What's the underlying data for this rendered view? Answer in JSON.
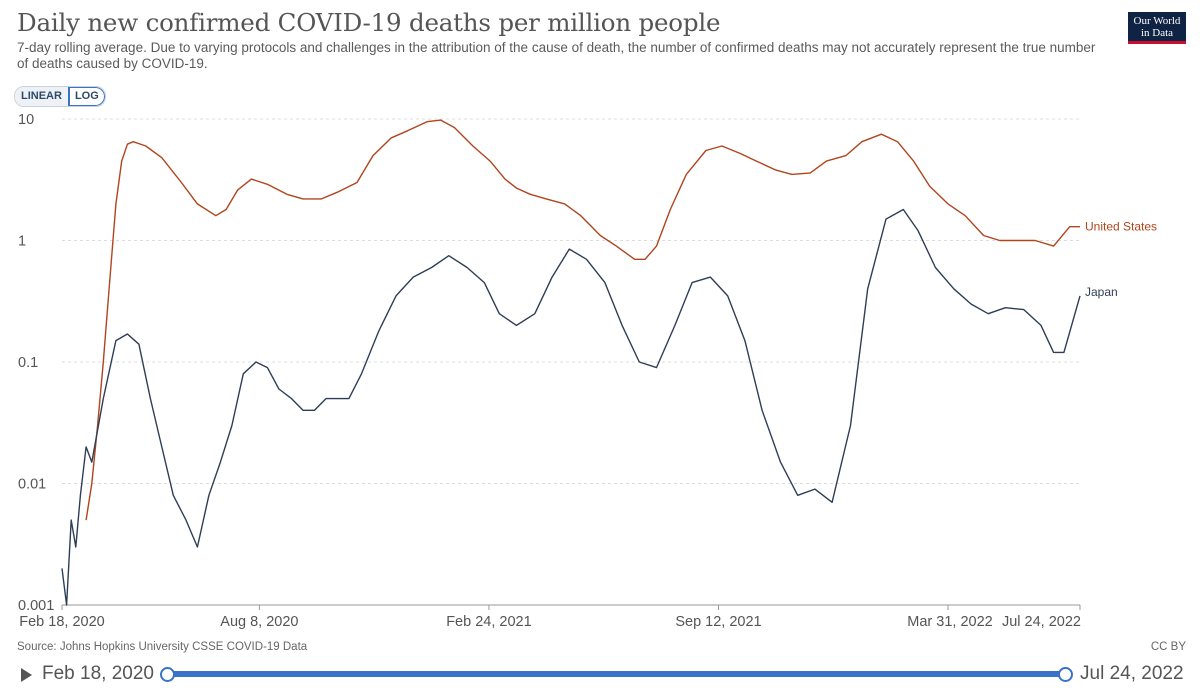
{
  "header": {
    "title": "Daily new confirmed COVID-19 deaths per million people",
    "subtitle": "7-day rolling average. Due to varying protocols and challenges in the attribution of the cause of death, the number of confirmed deaths may not accurately represent the true number of deaths caused by COVID-19.",
    "logo_line1": "Our World",
    "logo_line2": "in Data"
  },
  "controls": {
    "linear_label": "LINEAR",
    "log_label": "LOG",
    "active": "LOG"
  },
  "footer": {
    "source": "Source: Johns Hopkins University CSSE COVID-19 Data",
    "license": "CC BY"
  },
  "timeline": {
    "start": "Feb 18, 2020",
    "end": "Jul 24, 2022"
  },
  "colors": {
    "us": "#b0451e",
    "japan": "#2e3e56",
    "grid": "#dddddd",
    "accent": "#3a72c9"
  },
  "chart_data": {
    "type": "line",
    "title": "Daily new confirmed COVID-19 deaths per million people",
    "yscale": "log",
    "ylim": [
      0.001,
      10
    ],
    "yticks": [
      0.001,
      0.01,
      0.1,
      1,
      10
    ],
    "ytick_labels": [
      "0.001",
      "0.01",
      "0.1",
      "1",
      "10"
    ],
    "xlim": [
      "2020-02-18",
      "2022-07-24"
    ],
    "xticks": [
      "2020-02-18",
      "2020-08-08",
      "2021-02-24",
      "2021-09-12",
      "2022-03-31",
      "2022-07-24"
    ],
    "xtick_labels": [
      "Feb 18, 2020",
      "Aug 8, 2020",
      "Feb 24, 2021",
      "Sep 12, 2021",
      "Mar 31, 2022",
      "Jul 24, 2022"
    ],
    "grid": true,
    "legend": "inline-right",
    "series": [
      {
        "name": "United States",
        "color": "#b0451e",
        "x": [
          "2020-03-10",
          "2020-03-15",
          "2020-03-20",
          "2020-03-25",
          "2020-03-30",
          "2020-04-05",
          "2020-04-10",
          "2020-04-15",
          "2020-04-20",
          "2020-05-01",
          "2020-05-15",
          "2020-06-01",
          "2020-06-15",
          "2020-07-01",
          "2020-07-10",
          "2020-07-20",
          "2020-08-01",
          "2020-08-15",
          "2020-09-01",
          "2020-09-15",
          "2020-10-01",
          "2020-10-15",
          "2020-11-01",
          "2020-11-15",
          "2020-12-01",
          "2020-12-15",
          "2021-01-01",
          "2021-01-13",
          "2021-01-25",
          "2021-02-10",
          "2021-02-25",
          "2021-03-10",
          "2021-03-20",
          "2021-04-01",
          "2021-04-15",
          "2021-05-01",
          "2021-05-15",
          "2021-06-01",
          "2021-06-15",
          "2021-07-01",
          "2021-07-10",
          "2021-07-20",
          "2021-08-01",
          "2021-08-15",
          "2021-09-01",
          "2021-09-15",
          "2021-10-01",
          "2021-10-15",
          "2021-11-01",
          "2021-11-15",
          "2021-12-01",
          "2021-12-15",
          "2022-01-01",
          "2022-01-15",
          "2022-02-01",
          "2022-02-15",
          "2022-03-01",
          "2022-03-15",
          "2022-03-31",
          "2022-04-15",
          "2022-05-01",
          "2022-05-15",
          "2022-06-01",
          "2022-06-15",
          "2022-07-01",
          "2022-07-15",
          "2022-07-24"
        ],
        "values": [
          0.005,
          0.01,
          0.03,
          0.1,
          0.4,
          2.0,
          4.5,
          6.2,
          6.5,
          6.0,
          4.8,
          3.0,
          2.0,
          1.6,
          1.8,
          2.6,
          3.2,
          2.9,
          2.4,
          2.2,
          2.2,
          2.5,
          3.0,
          5.0,
          7.0,
          8.0,
          9.5,
          9.8,
          8.5,
          6.0,
          4.5,
          3.2,
          2.7,
          2.4,
          2.2,
          2.0,
          1.6,
          1.1,
          0.9,
          0.7,
          0.7,
          0.9,
          1.8,
          3.5,
          5.5,
          6.0,
          5.2,
          4.5,
          3.8,
          3.5,
          3.6,
          4.5,
          5.0,
          6.5,
          7.5,
          6.5,
          4.5,
          2.8,
          2.0,
          1.6,
          1.1,
          1.0,
          1.0,
          1.0,
          0.9,
          1.3,
          1.3
        ]
      },
      {
        "name": "Japan",
        "color": "#2e3e56",
        "x": [
          "2020-02-18",
          "2020-02-22",
          "2020-02-26",
          "2020-03-01",
          "2020-03-05",
          "2020-03-10",
          "2020-03-15",
          "2020-03-25",
          "2020-04-05",
          "2020-04-15",
          "2020-04-25",
          "2020-05-05",
          "2020-05-15",
          "2020-05-25",
          "2020-06-05",
          "2020-06-15",
          "2020-06-25",
          "2020-07-05",
          "2020-07-15",
          "2020-07-25",
          "2020-08-05",
          "2020-08-15",
          "2020-08-25",
          "2020-09-05",
          "2020-09-15",
          "2020-09-25",
          "2020-10-05",
          "2020-10-15",
          "2020-10-25",
          "2020-11-05",
          "2020-11-20",
          "2020-12-05",
          "2020-12-20",
          "2021-01-05",
          "2021-01-20",
          "2021-02-05",
          "2021-02-20",
          "2021-03-05",
          "2021-03-20",
          "2021-04-05",
          "2021-04-20",
          "2021-05-05",
          "2021-05-20",
          "2021-06-05",
          "2021-06-20",
          "2021-07-05",
          "2021-07-20",
          "2021-08-05",
          "2021-08-20",
          "2021-09-05",
          "2021-09-20",
          "2021-10-05",
          "2021-10-20",
          "2021-11-05",
          "2021-11-20",
          "2021-12-05",
          "2021-12-20",
          "2022-01-05",
          "2022-01-20",
          "2022-02-05",
          "2022-02-20",
          "2022-03-05",
          "2022-03-20",
          "2022-04-05",
          "2022-04-20",
          "2022-05-05",
          "2022-05-20",
          "2022-06-05",
          "2022-06-20",
          "2022-07-01",
          "2022-07-10",
          "2022-07-24"
        ],
        "values": [
          0.002,
          0.001,
          0.005,
          0.003,
          0.008,
          0.02,
          0.015,
          0.05,
          0.15,
          0.17,
          0.14,
          0.05,
          0.02,
          0.008,
          0.005,
          0.003,
          0.008,
          0.015,
          0.03,
          0.08,
          0.1,
          0.09,
          0.06,
          0.05,
          0.04,
          0.04,
          0.05,
          0.05,
          0.05,
          0.08,
          0.18,
          0.35,
          0.5,
          0.6,
          0.75,
          0.6,
          0.45,
          0.25,
          0.2,
          0.25,
          0.5,
          0.85,
          0.7,
          0.45,
          0.2,
          0.1,
          0.09,
          0.2,
          0.45,
          0.5,
          0.35,
          0.15,
          0.04,
          0.015,
          0.008,
          0.009,
          0.007,
          0.03,
          0.4,
          1.5,
          1.8,
          1.2,
          0.6,
          0.4,
          0.3,
          0.25,
          0.28,
          0.27,
          0.2,
          0.12,
          0.12,
          0.35
        ]
      }
    ]
  }
}
